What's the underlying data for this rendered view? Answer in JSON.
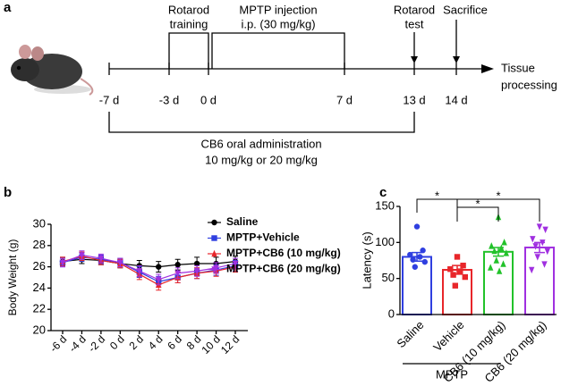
{
  "panel_labels": [
    "a",
    "b",
    "c"
  ],
  "timeline": {
    "days": [
      "-7 d",
      "-3 d",
      "0 d",
      "7 d",
      "13 d",
      "14 d"
    ],
    "rotarod_training": [
      "Rotarod",
      "training"
    ],
    "mptp_injection": [
      "MPTP injection",
      "i.p. (30 mg/kg)"
    ],
    "rotarod_test": [
      "Rotarod",
      "test"
    ],
    "sacrifice": "Sacrifice",
    "tissue_processing": [
      "Tissue",
      "processing"
    ],
    "cb6_administration": [
      "CB6 oral administration",
      "10 mg/kg or 20 mg/kg"
    ]
  },
  "chart_data": [
    {
      "type": "line",
      "y_label": "Body Weight (g)",
      "categories": [
        "-6 d",
        "-4 d",
        "-2 d",
        "0 d",
        "2 d",
        "4 d",
        "6 d",
        "8 d",
        "10 d",
        "12 d"
      ],
      "ylim": [
        20,
        30
      ],
      "yticks": [
        20,
        22,
        24,
        26,
        28,
        30
      ],
      "series": [
        {
          "name": "Saline",
          "color": "#000000",
          "marker": "circle",
          "values": [
            26.5,
            26.7,
            26.6,
            26.3,
            26.1,
            26.0,
            26.2,
            26.3,
            26.3,
            26.5
          ],
          "errors": [
            0.4,
            0.4,
            0.4,
            0.4,
            0.5,
            0.5,
            0.5,
            0.6,
            0.6,
            0.5
          ]
        },
        {
          "name": "MPTP+Vehicle",
          "color": "#2f3fe0",
          "marker": "square",
          "values": [
            26.4,
            26.9,
            26.7,
            26.4,
            25.5,
            24.6,
            25.0,
            25.4,
            25.7,
            26.1
          ],
          "errors": [
            0.4,
            0.4,
            0.4,
            0.4,
            0.5,
            0.5,
            0.5,
            0.5,
            0.5,
            0.5
          ]
        },
        {
          "name": "MPTP+CB6 (10 mg/kg)",
          "color": "#e8262a",
          "marker": "triangle-up",
          "values": [
            26.5,
            27.0,
            26.6,
            26.3,
            25.3,
            24.3,
            25.0,
            25.4,
            25.6,
            26.0
          ],
          "errors": [
            0.4,
            0.4,
            0.4,
            0.4,
            0.5,
            0.5,
            0.5,
            0.5,
            0.5,
            0.5
          ]
        },
        {
          "name": "MPTP+CB6 (20 mg/kg)",
          "color": "#a030e0",
          "marker": "triangle-down",
          "values": [
            26.4,
            27.1,
            26.8,
            26.4,
            25.6,
            24.8,
            25.4,
            25.6,
            25.9,
            26.3
          ],
          "errors": [
            0.4,
            0.4,
            0.4,
            0.4,
            0.5,
            0.5,
            0.5,
            0.5,
            0.5,
            0.5
          ]
        }
      ]
    },
    {
      "type": "bar",
      "y_label": "Latency (s)",
      "categories": [
        "Saline",
        "Vehicle",
        "CB6 (10 mg/kg)",
        "CB6 (20 mg/kg)"
      ],
      "colors": [
        "#2f3fe0",
        "#e8262a",
        "#22c22a",
        "#a030e0"
      ],
      "values": [
        80,
        62,
        87,
        93
      ],
      "errors": [
        6,
        6,
        6,
        7
      ],
      "points": [
        [
          122,
          89,
          83,
          80,
          76,
          73,
          66
        ],
        [
          80,
          68,
          63,
          60,
          55,
          52,
          40
        ],
        [
          135,
          100,
          95,
          92,
          88,
          85,
          75,
          70,
          65,
          60
        ],
        [
          122,
          118,
          105,
          100,
          95,
          88,
          80,
          70,
          62
        ]
      ],
      "ylim": [
        0,
        150
      ],
      "yticks": [
        0,
        50,
        100,
        150
      ],
      "group_label": "MPTP",
      "annotations": [
        "*",
        "*",
        "*"
      ]
    }
  ]
}
